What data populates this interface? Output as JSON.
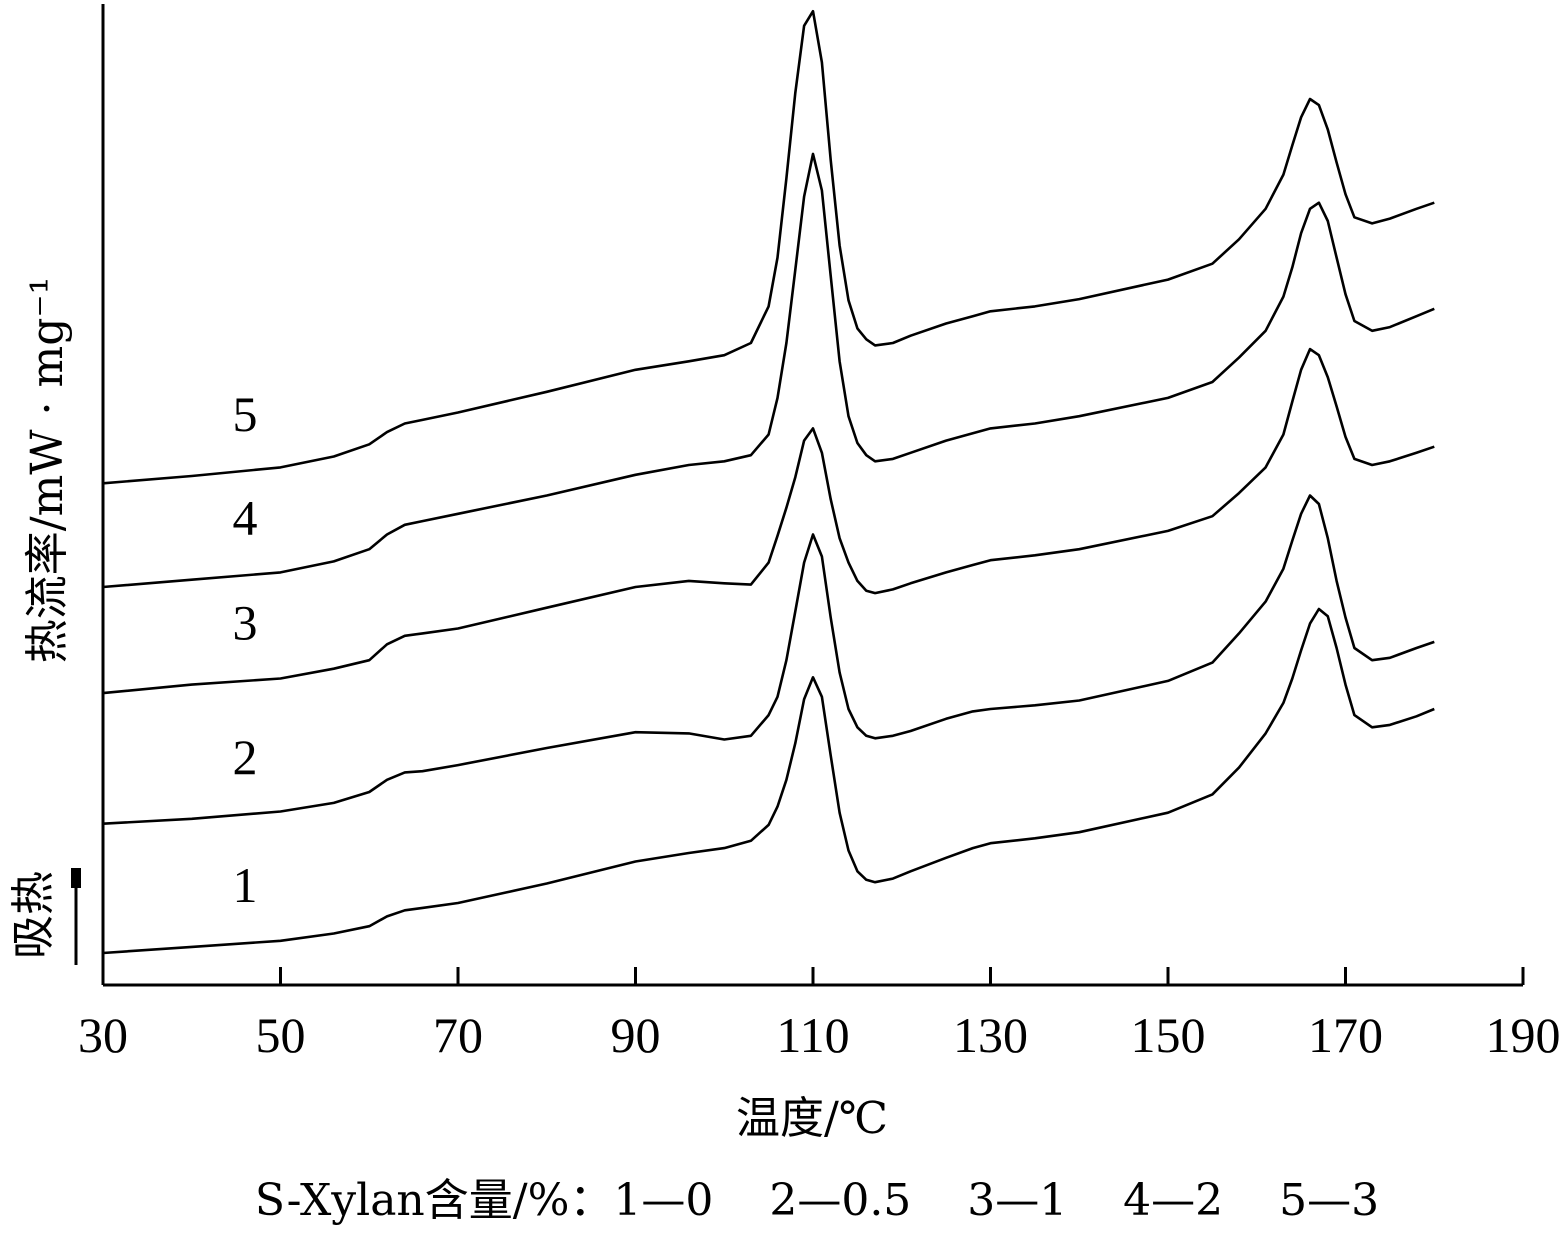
{
  "chart_data": {
    "type": "line",
    "xlabel": "温度/℃",
    "ylabel": "热流率/mW · mg⁻¹",
    "endotherm_label": "吸热",
    "legend_text": "S-Xylan含量/%：1—0    2—0.5    3—1    4—2    5—3",
    "xlim": [
      30,
      190
    ],
    "xticks": [
      30,
      50,
      70,
      90,
      110,
      130,
      150,
      170,
      190
    ],
    "x": [
      30,
      40,
      50,
      56,
      60,
      62,
      64,
      66,
      70,
      80,
      90,
      96,
      100,
      103,
      105,
      106,
      107,
      108,
      109,
      110,
      111,
      112,
      113,
      114,
      115,
      116,
      117,
      119,
      121,
      125,
      128,
      130,
      135,
      140,
      150,
      155,
      158,
      161,
      163,
      164,
      165,
      166,
      167,
      168,
      169,
      170,
      171,
      173,
      175,
      178,
      180
    ],
    "series": [
      {
        "name": "1",
        "values": [
          0.0,
          0.05,
          0.1,
          0.16,
          0.22,
          0.3,
          0.35,
          0.37,
          0.41,
          0.57,
          0.75,
          0.82,
          0.86,
          0.92,
          1.05,
          1.2,
          1.42,
          1.72,
          2.08,
          2.26,
          2.1,
          1.62,
          1.15,
          0.84,
          0.67,
          0.6,
          0.58,
          0.61,
          0.67,
          0.78,
          0.86,
          0.9,
          0.94,
          0.99,
          1.15,
          1.3,
          1.52,
          1.8,
          2.05,
          2.25,
          2.48,
          2.7,
          2.82,
          2.76,
          2.5,
          2.2,
          1.95,
          1.85,
          1.87,
          1.94,
          2.0
        ]
      },
      {
        "name": "2",
        "values": [
          1.06,
          1.1,
          1.16,
          1.23,
          1.32,
          1.42,
          1.48,
          1.49,
          1.54,
          1.68,
          1.81,
          1.8,
          1.75,
          1.78,
          1.95,
          2.1,
          2.4,
          2.8,
          3.2,
          3.43,
          3.25,
          2.75,
          2.3,
          2.0,
          1.85,
          1.78,
          1.76,
          1.78,
          1.82,
          1.92,
          1.98,
          2.0,
          2.03,
          2.07,
          2.23,
          2.38,
          2.62,
          2.88,
          3.15,
          3.38,
          3.6,
          3.75,
          3.68,
          3.4,
          3.05,
          2.75,
          2.5,
          2.4,
          2.42,
          2.5,
          2.55
        ]
      },
      {
        "name": "3",
        "values": [
          2.13,
          2.2,
          2.25,
          2.33,
          2.4,
          2.53,
          2.6,
          2.62,
          2.66,
          2.83,
          3.0,
          3.05,
          3.03,
          3.02,
          3.2,
          3.42,
          3.65,
          3.9,
          4.2,
          4.3,
          4.1,
          3.72,
          3.4,
          3.2,
          3.05,
          2.97,
          2.95,
          2.98,
          3.03,
          3.12,
          3.18,
          3.22,
          3.26,
          3.31,
          3.46,
          3.58,
          3.77,
          3.98,
          4.25,
          4.52,
          4.78,
          4.95,
          4.9,
          4.72,
          4.48,
          4.23,
          4.05,
          4.0,
          4.03,
          4.1,
          4.15
        ]
      },
      {
        "name": "4",
        "values": [
          3.0,
          3.06,
          3.12,
          3.21,
          3.31,
          3.43,
          3.51,
          3.54,
          3.6,
          3.75,
          3.92,
          4.0,
          4.03,
          4.08,
          4.25,
          4.55,
          5.0,
          5.6,
          6.2,
          6.55,
          6.25,
          5.55,
          4.85,
          4.4,
          4.18,
          4.08,
          4.03,
          4.05,
          4.1,
          4.2,
          4.26,
          4.3,
          4.34,
          4.4,
          4.55,
          4.68,
          4.88,
          5.1,
          5.38,
          5.62,
          5.9,
          6.1,
          6.15,
          6.0,
          5.7,
          5.4,
          5.18,
          5.1,
          5.13,
          5.22,
          5.28
        ]
      },
      {
        "name": "5",
        "values": [
          3.85,
          3.91,
          3.98,
          4.07,
          4.17,
          4.27,
          4.34,
          4.37,
          4.43,
          4.6,
          4.78,
          4.85,
          4.9,
          5.0,
          5.3,
          5.7,
          6.35,
          7.05,
          7.6,
          7.72,
          7.3,
          6.5,
          5.8,
          5.35,
          5.12,
          5.03,
          4.98,
          5.0,
          5.06,
          5.16,
          5.22,
          5.26,
          5.3,
          5.36,
          5.52,
          5.65,
          5.85,
          6.1,
          6.38,
          6.62,
          6.85,
          7.0,
          6.95,
          6.75,
          6.48,
          6.22,
          6.03,
          5.98,
          6.02,
          6.1,
          6.15
        ]
      }
    ]
  }
}
